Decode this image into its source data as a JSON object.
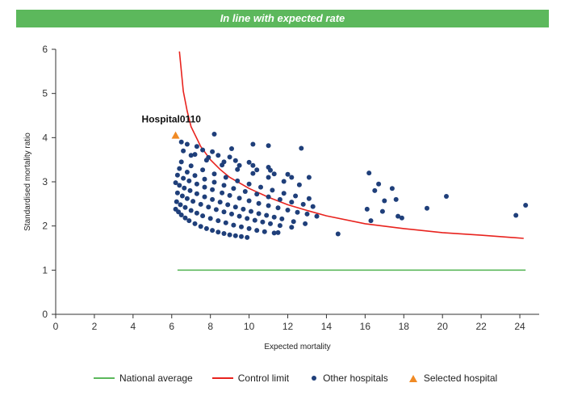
{
  "banner": {
    "text": "In line with expected rate",
    "color": "#5cb85c"
  },
  "chart_data": {
    "type": "scatter",
    "title": "In line with expected rate",
    "xlabel": "Expected mortality",
    "ylabel": "Standardised mortality ratio",
    "xlim": [
      0,
      25
    ],
    "ylim": [
      0,
      6
    ],
    "xticks": [
      0,
      2,
      4,
      6,
      8,
      10,
      12,
      14,
      16,
      18,
      20,
      22,
      24
    ],
    "yticks": [
      0,
      1,
      2,
      3,
      4,
      5,
      6
    ],
    "grid": false,
    "legend_position": "bottom",
    "series": [
      {
        "name": "National average",
        "kind": "line",
        "color": "#5cb85c",
        "x": [
          6.3,
          24.3
        ],
        "y": [
          1.0,
          1.0
        ]
      },
      {
        "name": "Control limit",
        "kind": "line",
        "color": "#e8231e",
        "x": [
          6.4,
          6.6,
          6.8,
          7.0,
          7.5,
          8.0,
          8.5,
          9.0,
          10.0,
          11.0,
          12.0,
          13.0,
          14.0,
          16.0,
          18.0,
          20.0,
          22.0,
          24.2
        ],
        "y": [
          5.95,
          5.05,
          4.6,
          4.25,
          3.8,
          3.5,
          3.28,
          3.1,
          2.85,
          2.65,
          2.48,
          2.35,
          2.23,
          2.05,
          1.94,
          1.85,
          1.79,
          1.72
        ]
      },
      {
        "name": "Other hospitals",
        "kind": "scatter",
        "color": "#1f3f7a",
        "x": [
          6.2,
          6.35,
          6.5,
          6.7,
          6.9,
          7.2,
          7.5,
          7.8,
          8.1,
          8.4,
          8.7,
          9.0,
          9.3,
          9.6,
          9.9,
          6.25,
          6.45,
          6.7,
          7.0,
          7.3,
          7.6,
          8.0,
          8.4,
          8.8,
          9.2,
          9.6,
          10.0,
          10.4,
          10.8,
          11.3,
          6.3,
          6.55,
          6.8,
          7.1,
          7.5,
          7.9,
          8.3,
          8.7,
          9.1,
          9.5,
          9.9,
          10.3,
          10.7,
          11.1,
          11.6,
          12.2,
          6.2,
          6.4,
          6.65,
          6.95,
          7.3,
          7.7,
          8.1,
          8.5,
          8.9,
          9.3,
          9.7,
          10.1,
          10.5,
          10.9,
          11.3,
          11.7,
          12.3,
          12.9,
          6.3,
          6.6,
          6.9,
          7.3,
          7.7,
          8.1,
          8.6,
          9.0,
          9.5,
          10.0,
          10.5,
          11.0,
          11.5,
          12.0,
          12.5,
          13.0,
          13.5,
          6.4,
          6.8,
          7.2,
          7.7,
          8.2,
          8.7,
          9.2,
          9.8,
          10.4,
          11.0,
          11.6,
          12.2,
          12.8,
          13.3,
          6.5,
          7.0,
          7.6,
          8.2,
          8.8,
          9.4,
          10.0,
          10.6,
          11.2,
          11.8,
          12.4,
          13.1,
          7.0,
          7.8,
          8.6,
          9.4,
          10.2,
          11.0,
          11.8,
          12.6,
          6.6,
          7.2,
          7.9,
          8.7,
          9.5,
          10.4,
          11.3,
          12.2,
          6.8,
          7.6,
          8.4,
          9.3,
          10.2,
          11.1,
          12.0,
          6.5,
          7.3,
          8.1,
          9.0,
          10.0,
          11.0,
          8.2,
          9.1,
          10.2,
          11.0,
          11.5,
          12.7,
          13.1,
          14.6,
          16.2,
          16.5,
          16.7,
          17.0,
          17.4,
          17.6,
          16.3,
          16.1,
          16.9,
          17.7,
          17.9,
          19.2,
          20.2,
          23.8,
          24.3
        ],
        "y": [
          2.38,
          2.32,
          2.25,
          2.18,
          2.12,
          2.05,
          1.99,
          1.94,
          1.9,
          1.86,
          1.83,
          1.8,
          1.78,
          1.76,
          1.74,
          2.55,
          2.48,
          2.42,
          2.35,
          2.29,
          2.23,
          2.17,
          2.12,
          2.07,
          2.02,
          1.98,
          1.94,
          1.9,
          1.87,
          1.84,
          2.75,
          2.68,
          2.62,
          2.56,
          2.49,
          2.43,
          2.37,
          2.32,
          2.27,
          2.22,
          2.17,
          2.13,
          2.09,
          2.05,
          2.01,
          1.97,
          2.98,
          2.92,
          2.86,
          2.8,
          2.73,
          2.66,
          2.6,
          2.54,
          2.48,
          2.43,
          2.38,
          2.33,
          2.28,
          2.24,
          2.2,
          2.16,
          2.1,
          2.05,
          3.15,
          3.08,
          3.02,
          2.95,
          2.88,
          2.82,
          2.75,
          2.69,
          2.63,
          2.57,
          2.51,
          2.46,
          2.41,
          2.36,
          2.31,
          2.27,
          2.22,
          3.3,
          3.22,
          3.14,
          3.06,
          2.99,
          2.92,
          2.85,
          2.78,
          2.72,
          2.66,
          2.6,
          2.54,
          2.49,
          2.44,
          3.45,
          3.36,
          3.27,
          3.18,
          3.1,
          3.02,
          2.95,
          2.88,
          2.81,
          2.74,
          2.68,
          2.62,
          3.6,
          3.49,
          3.38,
          3.28,
          3.19,
          3.1,
          3.01,
          2.93,
          3.7,
          3.62,
          3.55,
          3.45,
          3.37,
          3.27,
          3.18,
          3.1,
          3.85,
          3.72,
          3.6,
          3.48,
          3.37,
          3.26,
          3.17,
          3.9,
          3.8,
          3.68,
          3.56,
          3.44,
          3.33,
          4.08,
          3.75,
          3.85,
          3.82,
          1.85,
          3.76,
          3.1,
          1.82,
          3.2,
          2.8,
          2.95,
          2.57,
          2.85,
          2.6,
          2.12,
          2.38,
          2.33,
          2.22,
          2.18,
          2.4,
          2.67,
          2.24,
          2.47
        ]
      },
      {
        "name": "Selected hospital",
        "kind": "scatter",
        "marker": "triangle",
        "color": "#f08a24",
        "x": [
          6.2
        ],
        "y": [
          4.05
        ]
      }
    ],
    "annotations": [
      {
        "text": "Hospital0110",
        "x": 6.2,
        "y": 4.05
      }
    ]
  },
  "legend": [
    {
      "label": "National average",
      "kind": "line",
      "color": "#5cb85c"
    },
    {
      "label": "Control limit",
      "kind": "line",
      "color": "#e8231e"
    },
    {
      "label": "Other hospitals",
      "kind": "dot",
      "color": "#1f3f7a"
    },
    {
      "label": "Selected hospital",
      "kind": "triangle",
      "color": "#f08a24"
    }
  ]
}
